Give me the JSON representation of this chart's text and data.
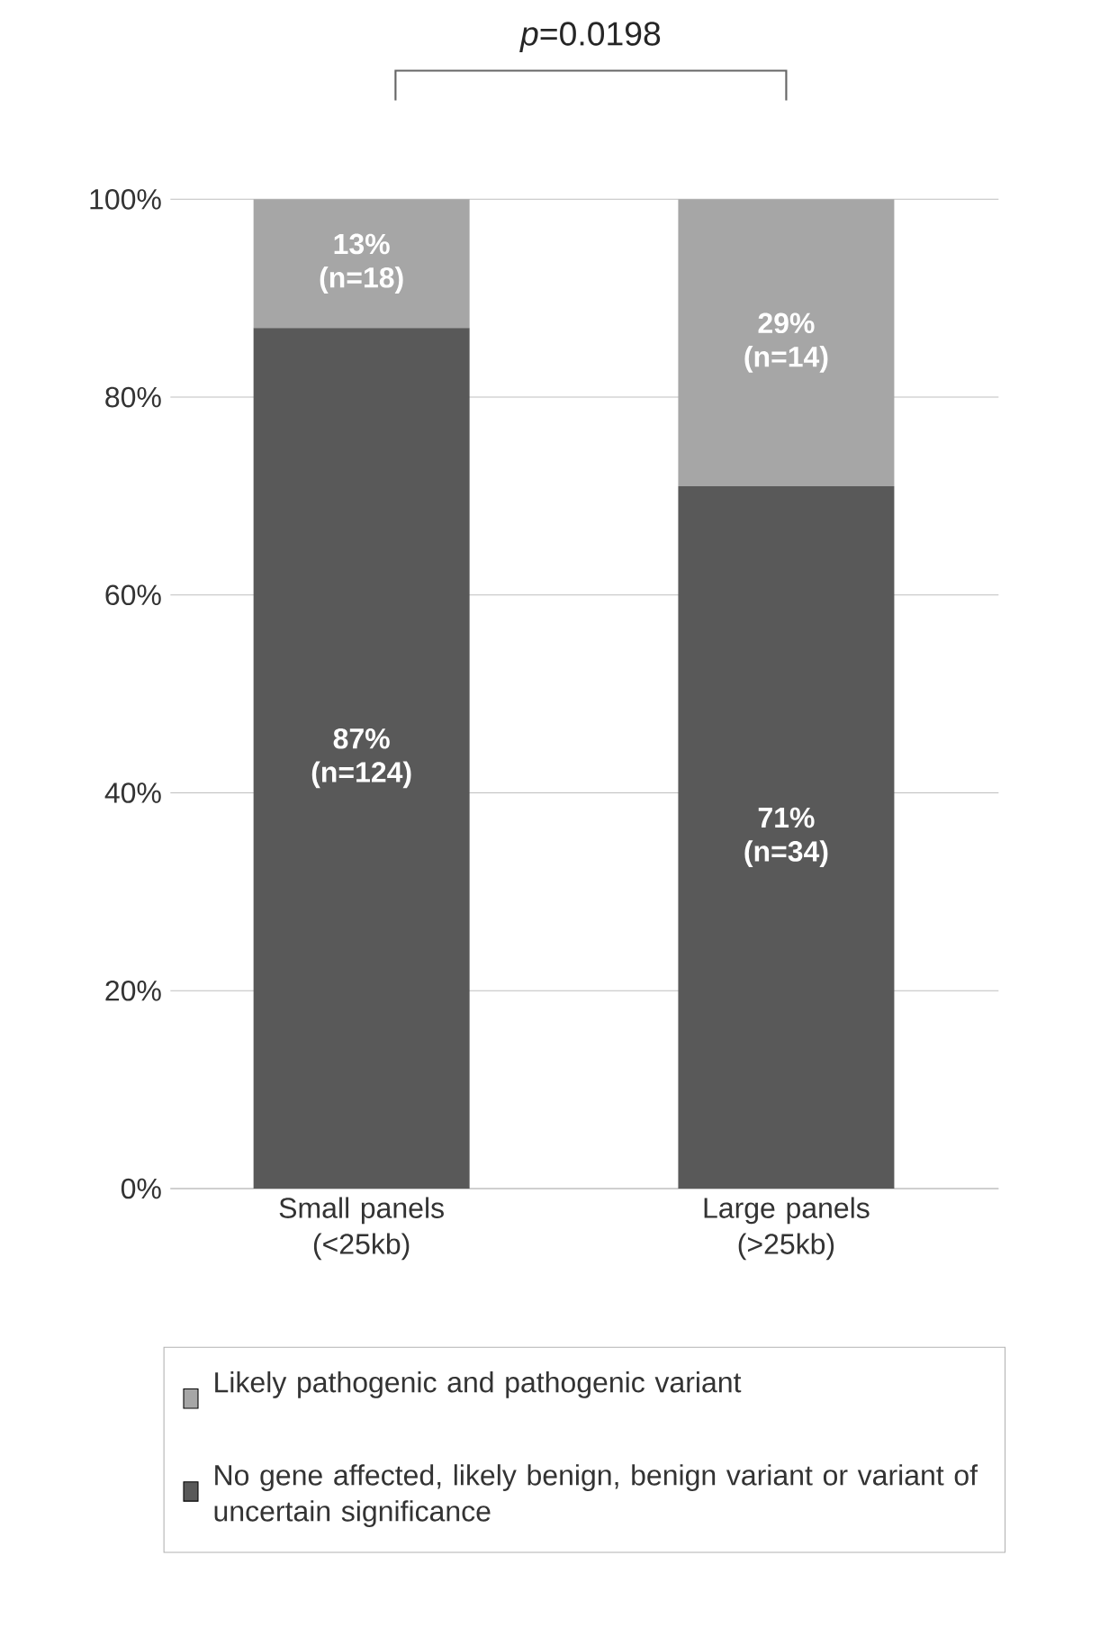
{
  "chart_data": {
    "type": "bar",
    "stacked": true,
    "categories": [
      "Small panels (<25kb)",
      "Large panels (>25kb)"
    ],
    "series": [
      {
        "name": "No gene affected, likely benign, benign variant or variant of uncertain significance",
        "color": "#595959",
        "values": [
          87,
          71
        ],
        "value_labels": [
          "87% (n=124)",
          "71% (n=34)"
        ]
      },
      {
        "name": "Likely pathogenic and pathogenic variant",
        "color": "#a6a6a6",
        "values": [
          13,
          29
        ],
        "value_labels": [
          "13% (n=18)",
          "29% (n=14)"
        ]
      }
    ],
    "ylim": [
      0,
      100
    ],
    "yticks": [
      {
        "value": 0,
        "label": "0%"
      },
      {
        "value": 20,
        "label": "20%"
      },
      {
        "value": 40,
        "label": "40%"
      },
      {
        "value": 60,
        "label": "60%"
      },
      {
        "value": 80,
        "label": "80%"
      },
      {
        "value": 100,
        "label": "100%"
      }
    ],
    "grid": "y",
    "legend": "bottom",
    "annotations": [
      "*p*=0.0198"
    ]
  }
}
